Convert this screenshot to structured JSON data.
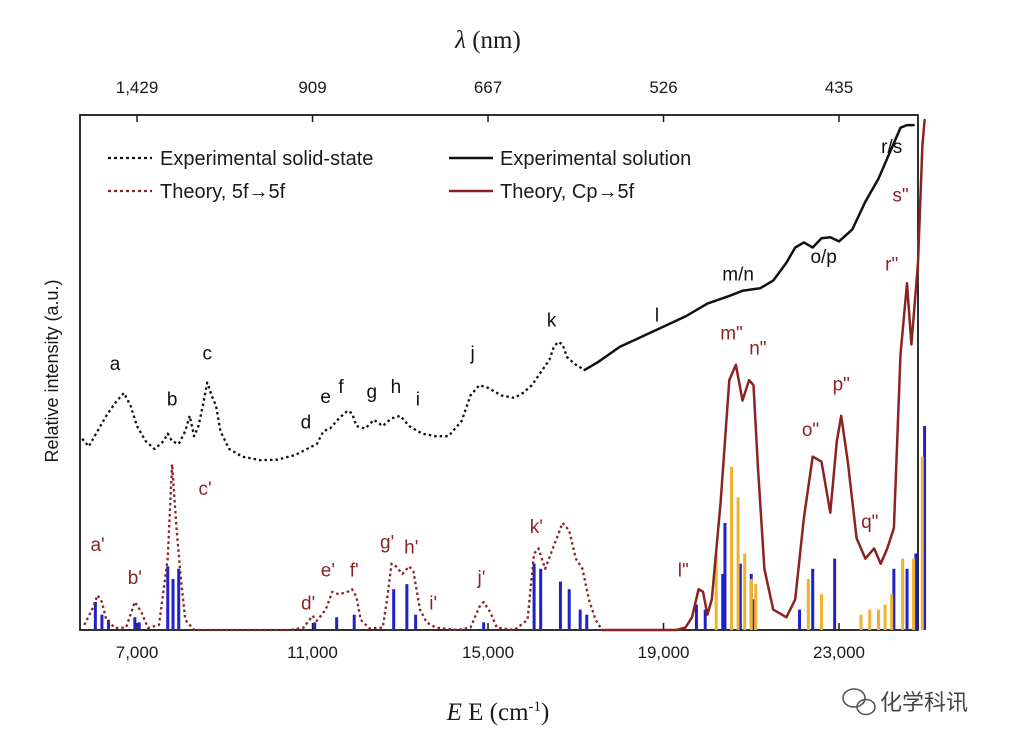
{
  "watermark": "化学科讯",
  "chart_data": {
    "type": "line",
    "top_axis": {
      "label_prefix": "λ",
      "label_suffix": " (nm)",
      "ticks": [
        "1,429",
        "909",
        "667",
        "526",
        "435"
      ],
      "tick_positions_cm1": [
        7000,
        11000,
        15000,
        19000,
        23000
      ]
    },
    "bottom_axis": {
      "label_main": "E (cm",
      "label_sup": "-1",
      "label_end": ")",
      "ticks": [
        "7,000",
        "11,000",
        "15,000",
        "19,000",
        "23,000"
      ],
      "tick_values": [
        7000,
        11000,
        15000,
        19000,
        23000
      ]
    },
    "xlim": [
      5700,
      24800
    ],
    "ylim": [
      0,
      1
    ],
    "ylabel": "Relative intensity (a.u.)",
    "legend": [
      {
        "label": "Experimental solid-state",
        "style": "dotted",
        "color": "#111111"
      },
      {
        "label": "Experimental solution",
        "style": "solid",
        "color": "#111111"
      },
      {
        "label": "Theory, 5f→5f",
        "style": "dotted",
        "color": "#8b2323"
      },
      {
        "label": "Theory, Cp→5f",
        "style": "solid",
        "color": "#8b2323"
      }
    ],
    "series": [
      {
        "name": "Experimental solid-state",
        "color": "#111111",
        "style": "dotted",
        "points": [
          [
            5750,
            0.375
          ],
          [
            5900,
            0.36
          ],
          [
            6100,
            0.39
          ],
          [
            6300,
            0.42
          ],
          [
            6500,
            0.445
          ],
          [
            6700,
            0.465
          ],
          [
            6850,
            0.44
          ],
          [
            7000,
            0.4
          ],
          [
            7200,
            0.37
          ],
          [
            7400,
            0.355
          ],
          [
            7600,
            0.37
          ],
          [
            7700,
            0.385
          ],
          [
            7800,
            0.37
          ],
          [
            7950,
            0.365
          ],
          [
            8100,
            0.39
          ],
          [
            8200,
            0.42
          ],
          [
            8300,
            0.38
          ],
          [
            8400,
            0.4
          ],
          [
            8500,
            0.44
          ],
          [
            8600,
            0.485
          ],
          [
            8700,
            0.46
          ],
          [
            8800,
            0.44
          ],
          [
            8900,
            0.39
          ],
          [
            9100,
            0.355
          ],
          [
            9400,
            0.34
          ],
          [
            9800,
            0.333
          ],
          [
            10200,
            0.334
          ],
          [
            10600,
            0.343
          ],
          [
            10900,
            0.356
          ],
          [
            11100,
            0.365
          ],
          [
            11250,
            0.39
          ],
          [
            11400,
            0.395
          ],
          [
            11600,
            0.415
          ],
          [
            11800,
            0.43
          ],
          [
            11900,
            0.425
          ],
          [
            12000,
            0.4
          ],
          [
            12200,
            0.395
          ],
          [
            12400,
            0.412
          ],
          [
            12600,
            0.4
          ],
          [
            12800,
            0.415
          ],
          [
            13000,
            0.42
          ],
          [
            13100,
            0.41
          ],
          [
            13200,
            0.4
          ],
          [
            13500,
            0.385
          ],
          [
            13800,
            0.38
          ],
          [
            14100,
            0.38
          ],
          [
            14400,
            0.41
          ],
          [
            14600,
            0.46
          ],
          [
            14800,
            0.48
          ],
          [
            15000,
            0.475
          ],
          [
            15300,
            0.46
          ],
          [
            15600,
            0.455
          ],
          [
            15800,
            0.465
          ],
          [
            16000,
            0.48
          ],
          [
            16200,
            0.505
          ],
          [
            16400,
            0.53
          ],
          [
            16500,
            0.555
          ],
          [
            16600,
            0.565
          ],
          [
            16700,
            0.56
          ],
          [
            16800,
            0.535
          ],
          [
            17000,
            0.52
          ],
          [
            17200,
            0.51
          ]
        ]
      },
      {
        "name": "Experimental solution",
        "color": "#111111",
        "style": "solid",
        "points": [
          [
            17200,
            0.51
          ],
          [
            17500,
            0.525
          ],
          [
            18000,
            0.555
          ],
          [
            18500,
            0.575
          ],
          [
            19000,
            0.595
          ],
          [
            19500,
            0.615
          ],
          [
            20000,
            0.64
          ],
          [
            20500,
            0.655
          ],
          [
            20800,
            0.665
          ],
          [
            21200,
            0.67
          ],
          [
            21500,
            0.685
          ],
          [
            21800,
            0.72
          ],
          [
            22000,
            0.75
          ],
          [
            22200,
            0.76
          ],
          [
            22400,
            0.75
          ],
          [
            22600,
            0.768
          ],
          [
            22800,
            0.77
          ],
          [
            23000,
            0.762
          ],
          [
            23300,
            0.785
          ],
          [
            23600,
            0.84
          ],
          [
            23900,
            0.885
          ],
          [
            24200,
            0.945
          ],
          [
            24400,
            0.985
          ],
          [
            24550,
            0.99
          ],
          [
            24700,
            0.99
          ]
        ]
      },
      {
        "name": "Theory, 5f→5f",
        "color": "#8b2323",
        "style": "dotted",
        "points": [
          [
            5800,
            0.01
          ],
          [
            6000,
            0.045
          ],
          [
            6100,
            0.068
          ],
          [
            6200,
            0.055
          ],
          [
            6300,
            0.02
          ],
          [
            6500,
            0.004
          ],
          [
            6750,
            0.005
          ],
          [
            6950,
            0.055
          ],
          [
            7100,
            0.035
          ],
          [
            7250,
            0.004
          ],
          [
            7500,
            0.01
          ],
          [
            7700,
            0.14
          ],
          [
            7800,
            0.325
          ],
          [
            7900,
            0.2
          ],
          [
            8000,
            0.1
          ],
          [
            8100,
            0.02
          ],
          [
            8300,
            0.0
          ],
          [
            10500,
            0.0
          ],
          [
            10800,
            0.005
          ],
          [
            11000,
            0.028
          ],
          [
            11100,
            0.018
          ],
          [
            11300,
            0.04
          ],
          [
            11450,
            0.075
          ],
          [
            11600,
            0.07
          ],
          [
            11800,
            0.075
          ],
          [
            11900,
            0.08
          ],
          [
            12000,
            0.065
          ],
          [
            12100,
            0.02
          ],
          [
            12300,
            0.003
          ],
          [
            12600,
            0.005
          ],
          [
            12700,
            0.06
          ],
          [
            12800,
            0.13
          ],
          [
            12900,
            0.125
          ],
          [
            13050,
            0.11
          ],
          [
            13200,
            0.125
          ],
          [
            13300,
            0.115
          ],
          [
            13450,
            0.04
          ],
          [
            13600,
            0.015
          ],
          [
            13800,
            0.005
          ],
          [
            14300,
            0.0
          ],
          [
            14600,
            0.005
          ],
          [
            14800,
            0.045
          ],
          [
            14900,
            0.055
          ],
          [
            15050,
            0.035
          ],
          [
            15200,
            0.005
          ],
          [
            15600,
            0.0
          ],
          [
            15900,
            0.02
          ],
          [
            16050,
            0.15
          ],
          [
            16150,
            0.16
          ],
          [
            16300,
            0.12
          ],
          [
            16500,
            0.165
          ],
          [
            16700,
            0.21
          ],
          [
            16850,
            0.195
          ],
          [
            17000,
            0.14
          ],
          [
            17150,
            0.12
          ],
          [
            17300,
            0.06
          ],
          [
            17450,
            0.02
          ],
          [
            17600,
            0.0
          ]
        ]
      },
      {
        "name": "Theory, Cp→5f",
        "color": "#8b2323",
        "style": "solid",
        "points": [
          [
            17600,
            0.0
          ],
          [
            19300,
            0.0
          ],
          [
            19500,
            0.005
          ],
          [
            19650,
            0.025
          ],
          [
            19800,
            0.08
          ],
          [
            19900,
            0.075
          ],
          [
            20000,
            0.03
          ],
          [
            20100,
            0.06
          ],
          [
            20300,
            0.25
          ],
          [
            20500,
            0.49
          ],
          [
            20650,
            0.52
          ],
          [
            20800,
            0.45
          ],
          [
            20950,
            0.49
          ],
          [
            21050,
            0.48
          ],
          [
            21150,
            0.32
          ],
          [
            21300,
            0.12
          ],
          [
            21500,
            0.04
          ],
          [
            21800,
            0.025
          ],
          [
            22000,
            0.06
          ],
          [
            22200,
            0.22
          ],
          [
            22400,
            0.34
          ],
          [
            22600,
            0.33
          ],
          [
            22800,
            0.23
          ],
          [
            22950,
            0.37
          ],
          [
            23050,
            0.42
          ],
          [
            23200,
            0.33
          ],
          [
            23400,
            0.18
          ],
          [
            23600,
            0.14
          ],
          [
            23800,
            0.16
          ],
          [
            23950,
            0.13
          ],
          [
            24100,
            0.16
          ],
          [
            24250,
            0.2
          ],
          [
            24400,
            0.54
          ],
          [
            24550,
            0.68
          ],
          [
            24650,
            0.56
          ],
          [
            24800,
            0.72
          ],
          [
            24900,
            0.95
          ],
          [
            24950,
            1.0
          ]
        ]
      }
    ],
    "stick_spectra": [
      {
        "name": "blue",
        "color": "#1e22c8",
        "bars": [
          [
            6050,
            0.055
          ],
          [
            6200,
            0.03
          ],
          [
            6350,
            0.02
          ],
          [
            6950,
            0.025
          ],
          [
            7050,
            0.015
          ],
          [
            7700,
            0.125
          ],
          [
            7820,
            0.1
          ],
          [
            7950,
            0.12
          ],
          [
            11050,
            0.015
          ],
          [
            11550,
            0.025
          ],
          [
            11950,
            0.03
          ],
          [
            12850,
            0.08
          ],
          [
            13150,
            0.09
          ],
          [
            13350,
            0.03
          ],
          [
            14900,
            0.015
          ],
          [
            16050,
            0.13
          ],
          [
            16200,
            0.12
          ],
          [
            16650,
            0.095
          ],
          [
            16850,
            0.08
          ],
          [
            17100,
            0.04
          ],
          [
            17250,
            0.03
          ],
          [
            19750,
            0.05
          ],
          [
            19950,
            0.04
          ],
          [
            20350,
            0.11
          ],
          [
            20400,
            0.21
          ],
          [
            20750,
            0.13
          ],
          [
            21000,
            0.11
          ],
          [
            21050,
            0.06
          ],
          [
            22100,
            0.04
          ],
          [
            22400,
            0.12
          ],
          [
            22900,
            0.14
          ],
          [
            24250,
            0.12
          ],
          [
            24550,
            0.12
          ],
          [
            24750,
            0.15
          ],
          [
            24950,
            0.4
          ]
        ]
      },
      {
        "name": "orange",
        "color": "#f0b22c",
        "bars": [
          [
            20200,
            0.15
          ],
          [
            20550,
            0.32
          ],
          [
            20700,
            0.26
          ],
          [
            20850,
            0.15
          ],
          [
            21000,
            0.1
          ],
          [
            21100,
            0.09
          ],
          [
            22300,
            0.1
          ],
          [
            22600,
            0.07
          ],
          [
            23500,
            0.03
          ],
          [
            23700,
            0.04
          ],
          [
            23900,
            0.04
          ],
          [
            24050,
            0.05
          ],
          [
            24200,
            0.07
          ],
          [
            24450,
            0.14
          ],
          [
            24700,
            0.14
          ],
          [
            24900,
            0.34
          ]
        ]
      }
    ],
    "peak_labels": [
      {
        "text": "a",
        "x": 6500,
        "y": 0.51,
        "color": "black"
      },
      {
        "text": "b",
        "x": 7800,
        "y": 0.44,
        "color": "black"
      },
      {
        "text": "c",
        "x": 8600,
        "y": 0.53,
        "color": "black"
      },
      {
        "text": "d",
        "x": 10850,
        "y": 0.395,
        "color": "black"
      },
      {
        "text": "e",
        "x": 11300,
        "y": 0.445,
        "color": "black"
      },
      {
        "text": "f",
        "x": 11650,
        "y": 0.465,
        "color": "black"
      },
      {
        "text": "g",
        "x": 12350,
        "y": 0.455,
        "color": "black"
      },
      {
        "text": "h",
        "x": 12900,
        "y": 0.465,
        "color": "black"
      },
      {
        "text": "i",
        "x": 13400,
        "y": 0.44,
        "color": "black"
      },
      {
        "text": "j",
        "x": 14650,
        "y": 0.53,
        "color": "black"
      },
      {
        "text": "k",
        "x": 16450,
        "y": 0.595,
        "color": "black"
      },
      {
        "text": "l",
        "x": 18850,
        "y": 0.605,
        "color": "black"
      },
      {
        "text": "m/n",
        "x": 20700,
        "y": 0.685,
        "color": "black"
      },
      {
        "text": "o/p",
        "x": 22650,
        "y": 0.72,
        "color": "black"
      },
      {
        "text": "r/s",
        "x": 24200,
        "y": 0.935,
        "color": "black"
      },
      {
        "text": "a'",
        "x": 6100,
        "y": 0.155,
        "color": "red"
      },
      {
        "text": "b'",
        "x": 6950,
        "y": 0.09,
        "color": "red"
      },
      {
        "text": "c'",
        "x": 8550,
        "y": 0.265,
        "color": "red"
      },
      {
        "text": "d'",
        "x": 10900,
        "y": 0.04,
        "color": "red"
      },
      {
        "text": "e'",
        "x": 11350,
        "y": 0.105,
        "color": "red"
      },
      {
        "text": "f'",
        "x": 11950,
        "y": 0.105,
        "color": "red"
      },
      {
        "text": "g'",
        "x": 12700,
        "y": 0.16,
        "color": "red"
      },
      {
        "text": "h'",
        "x": 13250,
        "y": 0.15,
        "color": "red"
      },
      {
        "text": "i'",
        "x": 13750,
        "y": 0.04,
        "color": "red"
      },
      {
        "text": "j'",
        "x": 14850,
        "y": 0.09,
        "color": "red"
      },
      {
        "text": "k'",
        "x": 16100,
        "y": 0.19,
        "color": "red"
      },
      {
        "text": "l\"",
        "x": 19450,
        "y": 0.105,
        "color": "red"
      },
      {
        "text": "m\"",
        "x": 20550,
        "y": 0.57,
        "color": "red"
      },
      {
        "text": "n\"",
        "x": 21150,
        "y": 0.54,
        "color": "red"
      },
      {
        "text": "o\"",
        "x": 22350,
        "y": 0.38,
        "color": "red"
      },
      {
        "text": "p\"",
        "x": 23050,
        "y": 0.47,
        "color": "red"
      },
      {
        "text": "q\"",
        "x": 23700,
        "y": 0.2,
        "color": "red"
      },
      {
        "text": "r\"",
        "x": 24200,
        "y": 0.705,
        "color": "red"
      },
      {
        "text": "s\"",
        "x": 24400,
        "y": 0.84,
        "color": "red"
      }
    ]
  }
}
